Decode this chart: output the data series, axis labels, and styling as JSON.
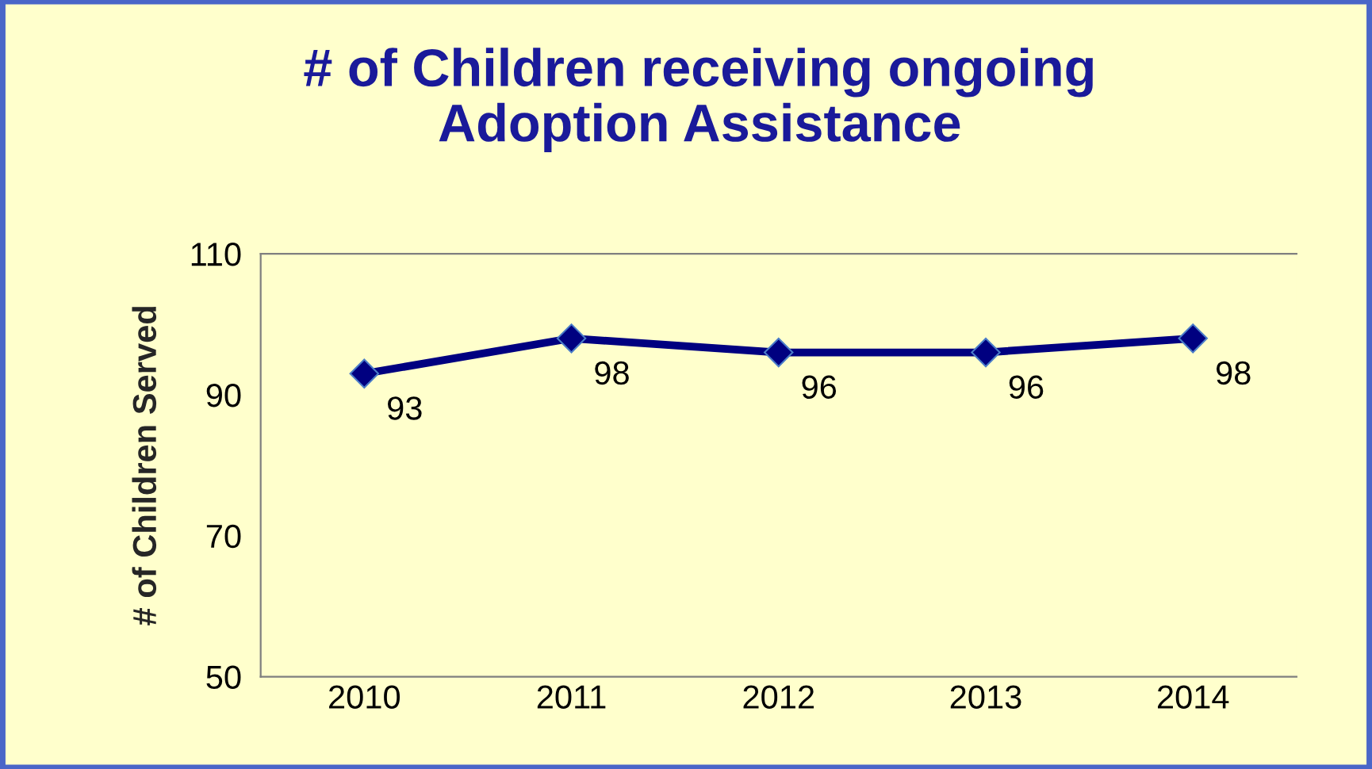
{
  "chart_data": {
    "type": "line",
    "title": "# of Children receiving ongoing\nAdoption Assistance",
    "ylabel": "# of Children Served",
    "categories": [
      "2010",
      "2011",
      "2012",
      "2013",
      "2014"
    ],
    "series": [
      {
        "color": "#000080",
        "values": [
          93,
          98,
          96,
          96,
          98
        ]
      }
    ],
    "ylim": [
      50,
      110
    ],
    "yticks": [
      50,
      70,
      90,
      110
    ],
    "grid": false,
    "legend": false,
    "marker": "diamond",
    "line_style": "solid",
    "data_labels": true
  }
}
